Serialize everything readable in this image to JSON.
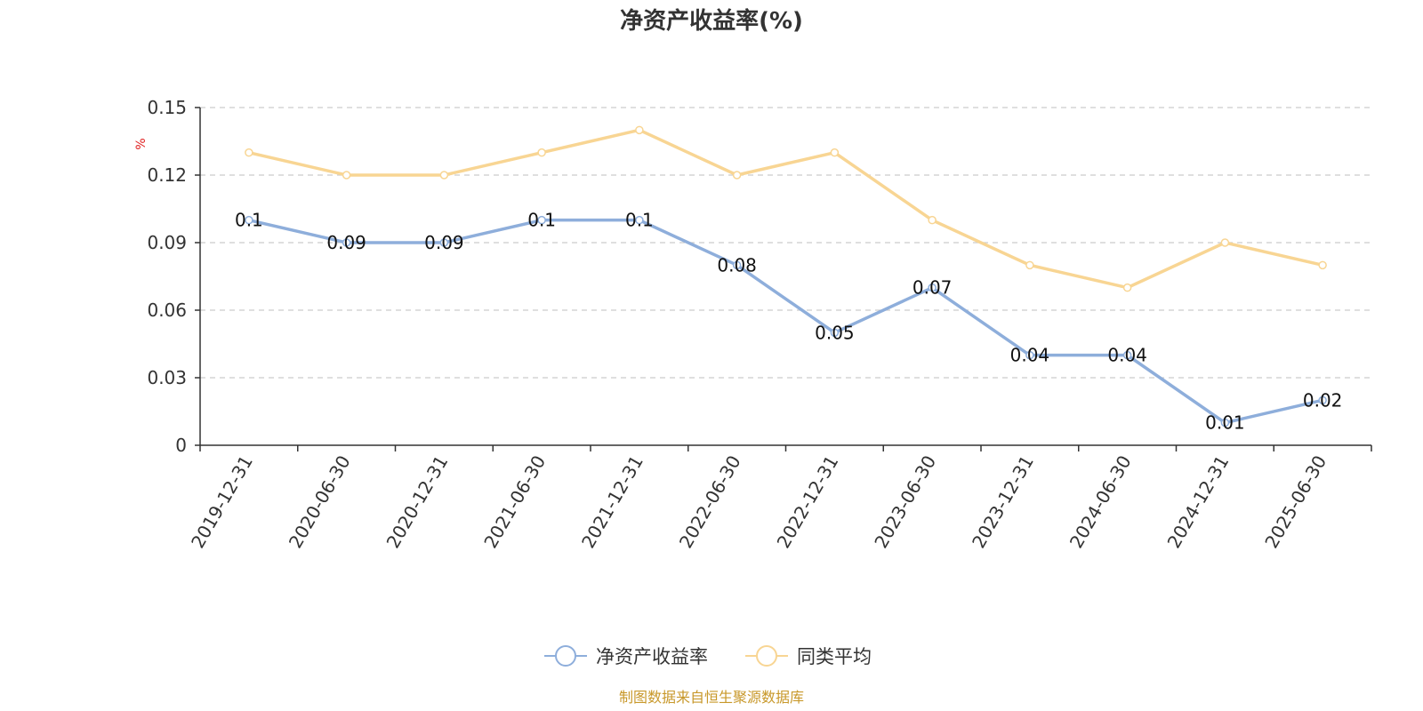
{
  "chart_data": {
    "type": "line",
    "title": "净资产收益率(%)",
    "ylabel": "%",
    "ylim": [
      0,
      0.15
    ],
    "yticks": [
      "0",
      "0.03",
      "0.06",
      "0.09",
      "0.12",
      "0.15"
    ],
    "categories": [
      "2019-12-31",
      "2020-06-30",
      "2020-12-31",
      "2021-06-30",
      "2021-12-31",
      "2022-06-30",
      "2022-12-31",
      "2023-06-30",
      "2023-12-31",
      "2024-06-30",
      "2024-12-31",
      "2025-06-30"
    ],
    "series": [
      {
        "name": "净资产收益率",
        "color": "#8eaedb",
        "values": [
          0.1,
          0.09,
          0.09,
          0.1,
          0.1,
          0.08,
          0.05,
          0.07,
          0.04,
          0.04,
          0.01,
          0.02
        ],
        "labels": [
          "0.1",
          "0.09",
          "0.09",
          "0.1",
          "0.1",
          "0.08",
          "0.05",
          "0.07",
          "0.04",
          "0.04",
          "0.01",
          "0.02"
        ]
      },
      {
        "name": "同类平均",
        "color": "#f8d593",
        "values": [
          0.13,
          0.12,
          0.12,
          0.13,
          0.14,
          0.12,
          0.13,
          0.1,
          0.08,
          0.07,
          0.09,
          0.08
        ]
      }
    ],
    "grid": true,
    "legend_position": "bottom-center",
    "source": "制图数据来自恒生聚源数据库"
  }
}
